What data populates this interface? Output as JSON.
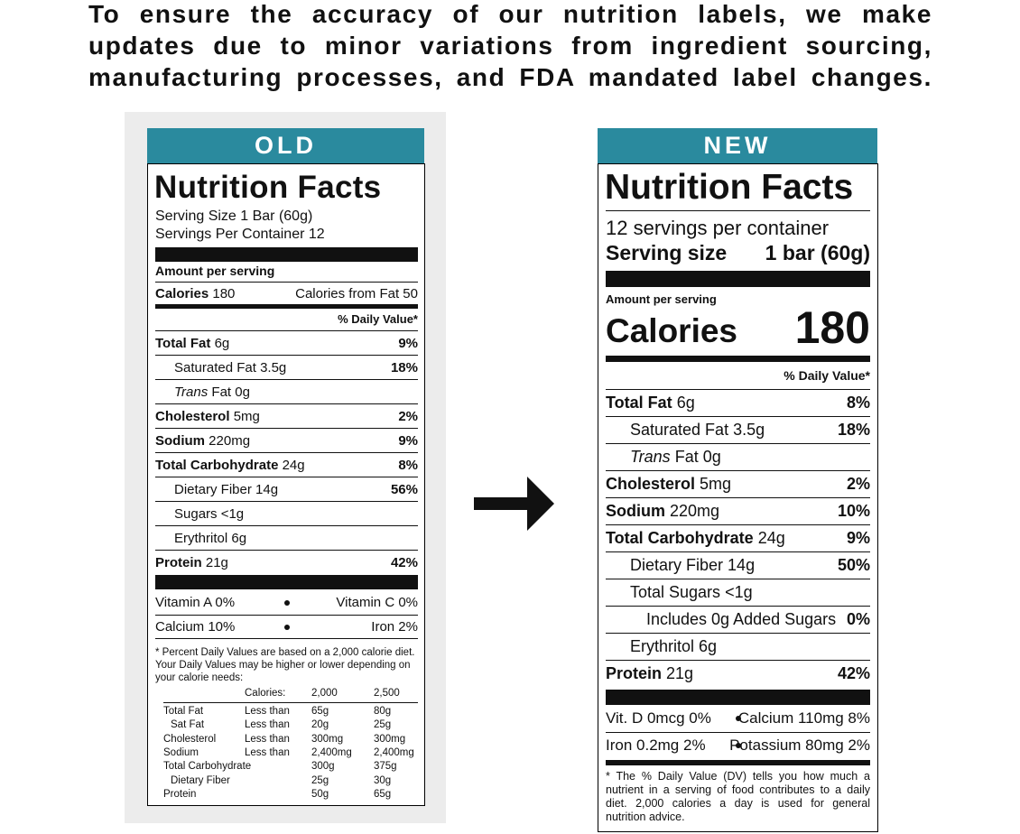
{
  "header": {
    "lines": [
      "To ensure the accuracy of our nutrition labels, we make",
      "updates due to minor variations from ingredient sourcing,",
      "manufacturing processes, and FDA mandated label changes."
    ]
  },
  "old": {
    "badge": "OLD",
    "title": "Nutrition Facts",
    "serving_size": "Serving Size 1 Bar (60g)",
    "servings": "Servings Per Container 12",
    "amount_per_serving": "Amount per serving",
    "calories_label": "Calories",
    "calories_value": "180",
    "calories_from_fat": "Calories from Fat 50",
    "daily_value": "% Daily Value*",
    "rows": [
      {
        "name": "Total Fat",
        "amount": "6g",
        "dv": "9%"
      },
      {
        "name": "Saturated Fat",
        "amount": "3.5g",
        "dv": "18%"
      },
      {
        "name_italic": "Trans",
        "name": "Fat",
        "amount": "0g"
      },
      {
        "name": "Cholesterol",
        "amount": "5mg",
        "dv": "2%"
      },
      {
        "name": "Sodium",
        "amount": "220mg",
        "dv": "9%"
      },
      {
        "name": "Total Carbohydrate",
        "amount": "24g",
        "dv": "8%"
      },
      {
        "name": "Dietary Fiber",
        "amount": "14g",
        "dv": "56%"
      },
      {
        "name": "Sugars",
        "amount": "<1g"
      },
      {
        "name": "Erythritol",
        "amount": "6g"
      },
      {
        "name": "Protein",
        "amount": "21g",
        "dv": "42%"
      }
    ],
    "vitamins": [
      [
        "Vitamin A 0%",
        "Vitamin C 0%"
      ],
      [
        "Calcium 10%",
        "Iron 2%"
      ]
    ],
    "footnote": "* Percent Daily Values are based on a 2,000 calorie diet. Your Daily Values may be higher or lower depending on your calorie needs:",
    "table": {
      "header": [
        "Calories:",
        "2,000",
        "2,500"
      ],
      "rows": [
        {
          "nutrient": "Total Fat",
          "limit": "Less than",
          "v2000": "65g",
          "v2500": "80g"
        },
        {
          "nutrient": "Sat Fat",
          "limit": "Less than",
          "v2000": "20g",
          "v2500": "25g"
        },
        {
          "nutrient": "Cholesterol",
          "limit": "Less than",
          "v2000": "300mg",
          "v2500": "300mg"
        },
        {
          "nutrient": "Sodium",
          "limit": "Less than",
          "v2000": "2,400mg",
          "v2500": "2,400mg"
        },
        {
          "nutrient": "Total Carbohydrate",
          "v2000": "300g",
          "v2500": "375g"
        },
        {
          "nutrient": "Dietary Fiber",
          "v2000": "25g",
          "v2500": "30g"
        },
        {
          "nutrient": "Protein",
          "v2000": "50g",
          "v2500": "65g"
        }
      ]
    }
  },
  "new": {
    "badge": "NEW",
    "title": "Nutrition Facts",
    "servings": "12 servings per container",
    "serving_label": "Serving size",
    "serving_value": "1 bar (60g)",
    "amount_per_serving": "Amount per serving",
    "calories_label": "Calories",
    "calories_value": "180",
    "daily_value": "% Daily Value*",
    "rows": [
      {
        "name": "Total Fat",
        "amount": "6g",
        "dv": "8%"
      },
      {
        "name": "Saturated Fat",
        "amount": "3.5g",
        "dv": "18%"
      },
      {
        "name_italic": "Trans",
        "name": "Fat",
        "amount": "0g"
      },
      {
        "name": "Cholesterol",
        "amount": "5mg",
        "dv": "2%"
      },
      {
        "name": "Sodium",
        "amount": "220mg",
        "dv": "10%"
      },
      {
        "name": "Total Carbohydrate",
        "amount": "24g",
        "dv": "9%"
      },
      {
        "name": "Dietary Fiber",
        "amount": "14g",
        "dv": "50%"
      },
      {
        "name": "Total Sugars",
        "amount": "<1g"
      },
      {
        "name": "Includes 0g Added Sugars",
        "dv": "0%"
      },
      {
        "name": "Erythritol",
        "amount": "6g"
      },
      {
        "name": "Protein",
        "amount": "21g",
        "dv": "42%"
      }
    ],
    "minerals": [
      [
        "Vit. D 0mcg 0%",
        "Calcium 110mg 8%"
      ],
      [
        "Iron 0.2mg 2%",
        "Potassium 80mg 2%"
      ]
    ],
    "footnote": "* The % Daily Value (DV) tells you how much a nutrient in a serving of food contributes to a daily diet. 2,000 calories a day is used for general nutrition advice."
  }
}
